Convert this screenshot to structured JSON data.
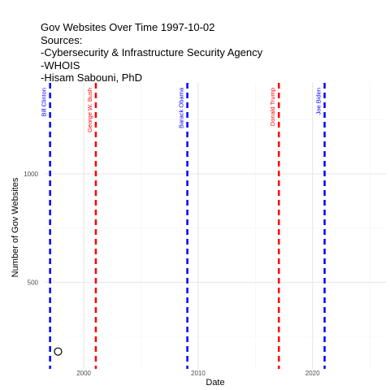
{
  "chart_data": {
    "type": "scatter",
    "title": "Gov Websites Over Time 1997-10-02",
    "subtitle_lines": [
      "Sources:",
      "-Cybersecurity & Infrastructure Security Agency",
      "-WHOIS",
      "-Hisam Sabouni, PhD"
    ],
    "xlabel": "Date",
    "ylabel": "Number of  Gov Websites",
    "x_ticks": [
      "2000",
      "2010",
      "2020"
    ],
    "y_ticks": [
      500,
      1000
    ],
    "xlim": [
      "1996-08-01",
      "2026-06-01"
    ],
    "ylim": [
      100,
      1420
    ],
    "grid": true,
    "points": [
      {
        "date": "1997-10-02",
        "y": 180
      }
    ],
    "presidents": [
      {
        "name": "Bill Clinton",
        "date": "1997-01-20",
        "color": "#0000ff"
      },
      {
        "name": "George W. Bush",
        "date": "2001-01-20",
        "color": "#ff0000"
      },
      {
        "name": "Barack Obama",
        "date": "2009-01-20",
        "color": "#0000ff"
      },
      {
        "name": "Donald Trump",
        "date": "2017-01-20",
        "color": "#ff0000"
      },
      {
        "name": "Joe Biden",
        "date": "2021-01-20",
        "color": "#0000ff"
      }
    ]
  }
}
